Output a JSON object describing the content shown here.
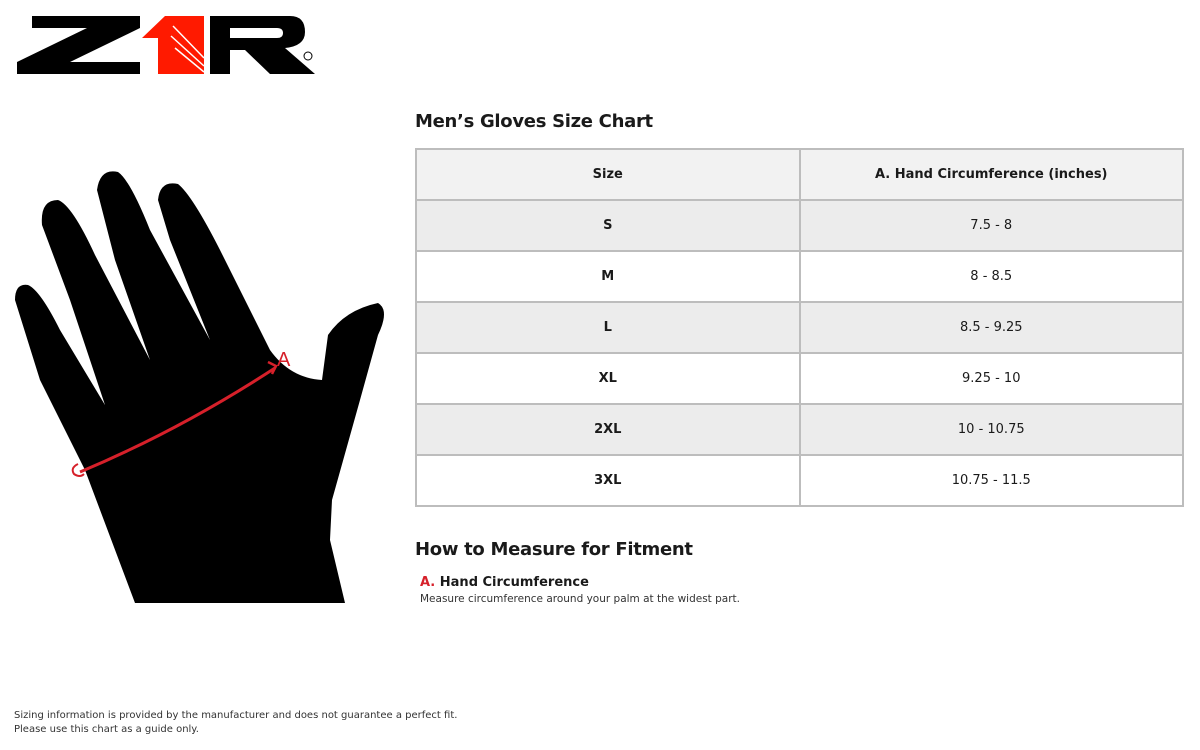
{
  "logo": {
    "text": "Z1R",
    "colors": {
      "black": "#000000",
      "red": "#ff1a00"
    }
  },
  "chart_title": "Men’s Gloves Size Chart",
  "table": {
    "headers": [
      "Size",
      "A. Hand Circumference (inches)"
    ],
    "rows": [
      [
        "S",
        "7.5 - 8"
      ],
      [
        "M",
        "8 - 8.5"
      ],
      [
        "L",
        "8.5 - 9.25"
      ],
      [
        "XL",
        "9.25 - 10"
      ],
      [
        "2XL",
        "10 - 10.75"
      ],
      [
        "3XL",
        "10.75 - 11.5"
      ]
    ]
  },
  "diagram": {
    "marker": "A",
    "accent": "#d6202a"
  },
  "measure": {
    "title": "How to Measure for Fitment",
    "letter": "A.",
    "label": "Hand Circumference",
    "description": "Measure circumference around your palm at the widest part."
  },
  "disclaimer": [
    "Sizing information is provided by the manufacturer and does not guarantee a perfect fit.",
    "Please use this chart as a guide only."
  ]
}
